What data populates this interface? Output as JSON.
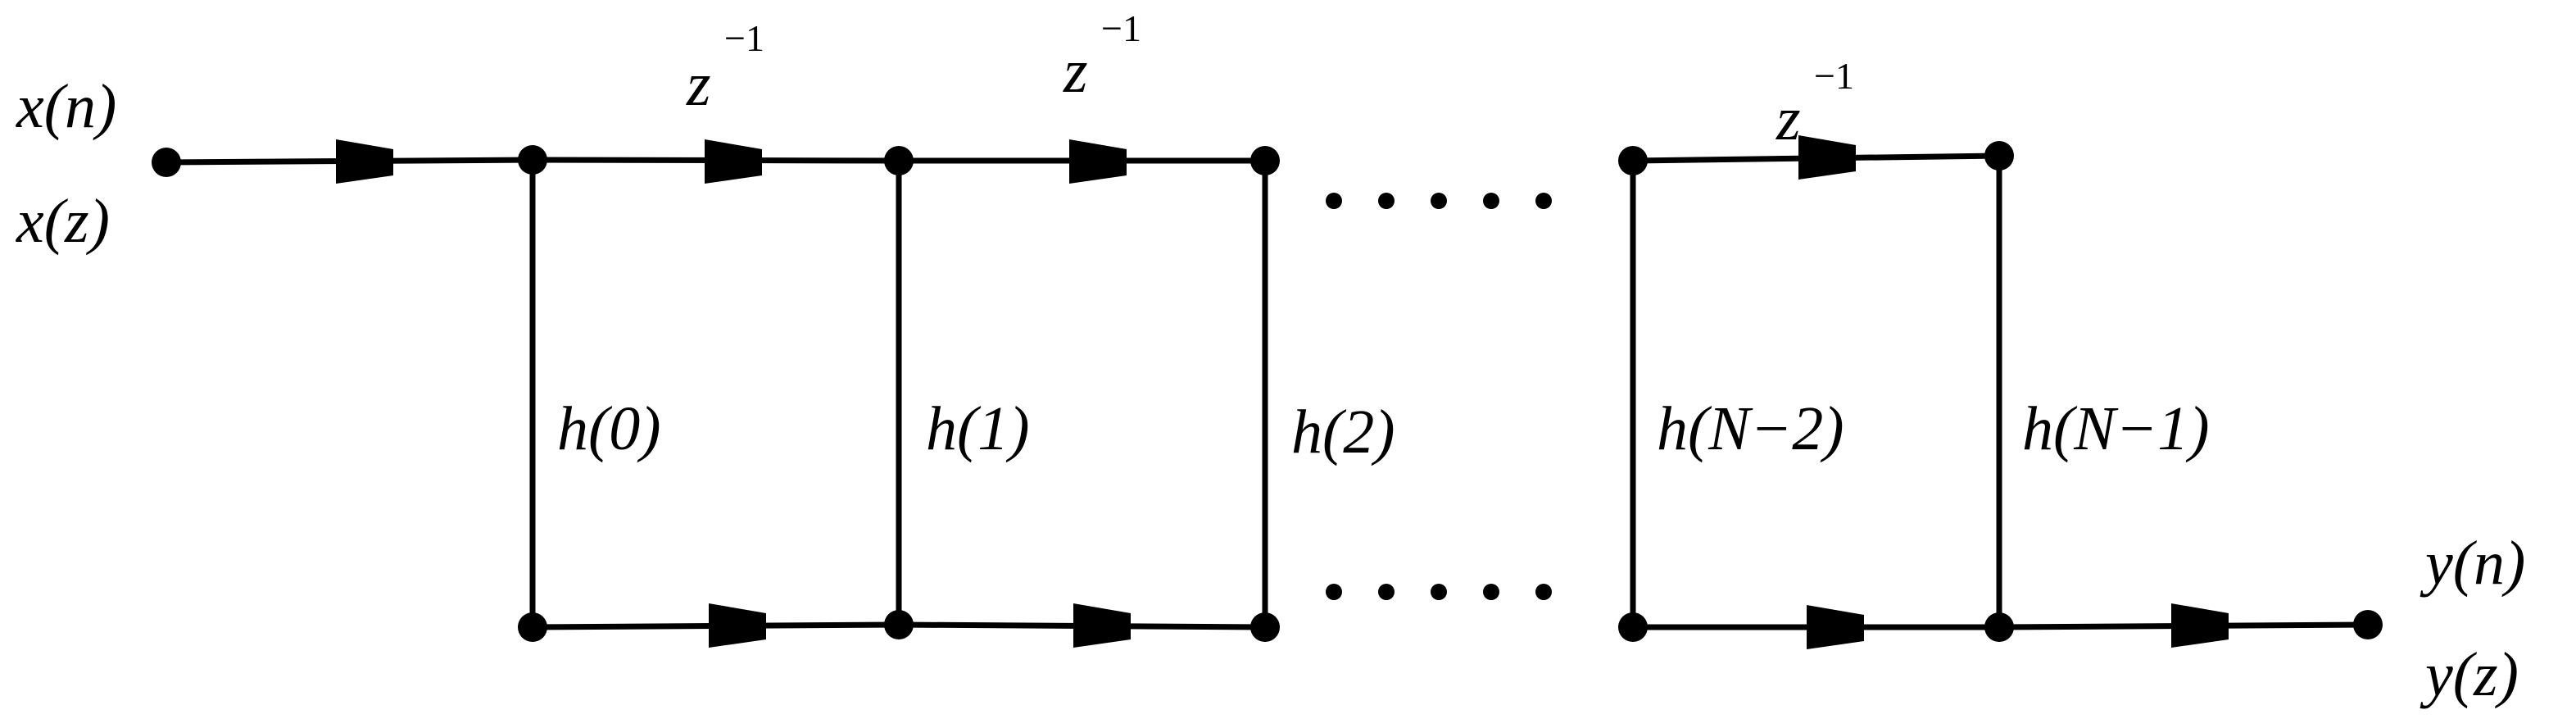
{
  "signals": {
    "input_time": "x(n)",
    "input_z": "x(z)",
    "output_time": "y(n)",
    "output_z": "y(z)"
  },
  "delays": [
    {
      "base": "z",
      "exp": "−1"
    },
    {
      "base": "z",
      "exp": "−1"
    },
    {
      "base": "z",
      "exp": "−1"
    }
  ],
  "coefficients": [
    "h(0)",
    "h(1)",
    "h(2)",
    "h(N−2)",
    "h(N−1)"
  ],
  "ellipsis": "······",
  "colors": {
    "stroke": "#000000",
    "background": "#ffffff"
  }
}
